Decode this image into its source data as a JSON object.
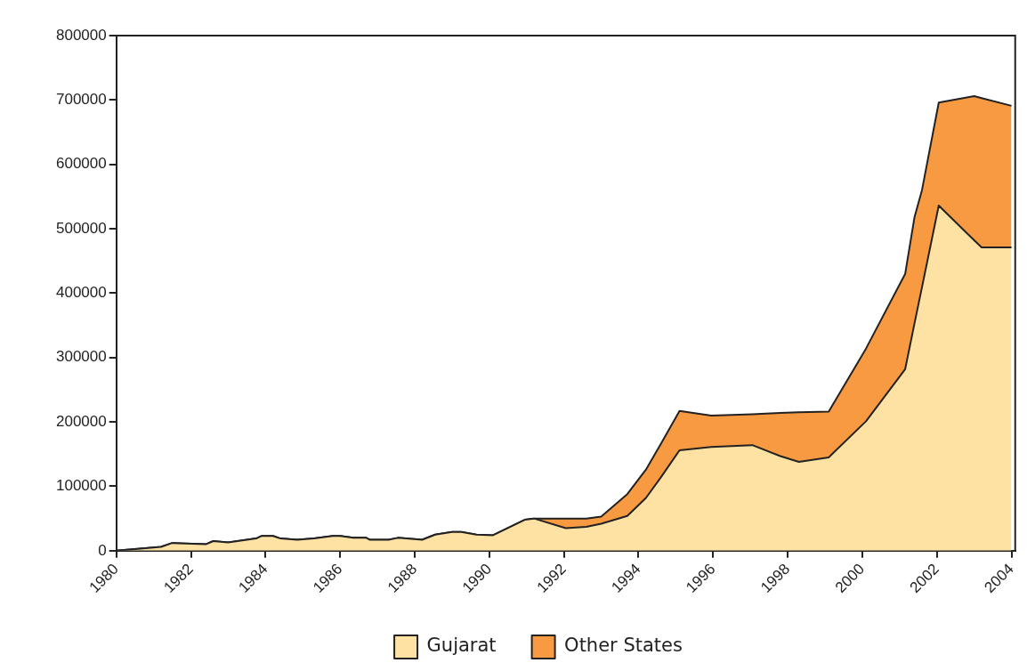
{
  "chart_data": {
    "type": "area",
    "stacked": true,
    "legend": "bottom",
    "grid": false,
    "x": [
      1980,
      1981.2,
      1981.5,
      1982.4,
      1982.6,
      1983.0,
      1983.75,
      1983.9,
      1984.2,
      1984.4,
      1984.85,
      1985.3,
      1985.8,
      1986.0,
      1986.35,
      1986.7,
      1986.8,
      1987.3,
      1987.55,
      1988.2,
      1988.55,
      1989.0,
      1989.25,
      1989.65,
      1990.1,
      1990.95,
      1991.2,
      1992.05,
      1992.6,
      1993.0,
      1993.7,
      1994.2,
      1994.6,
      1995.1,
      1995.95,
      1997.05,
      1997.8,
      1998.3,
      1999.1,
      2000.1,
      2001.15,
      2001.4,
      2001.6,
      2002.05,
      2003.0,
      2003.2,
      2004.0
    ],
    "series": [
      {
        "name": "Gujarat",
        "color": "#fde2a4",
        "values": [
          0,
          6000,
          12000,
          10000,
          15000,
          13000,
          19000,
          23000,
          23000,
          19000,
          17000,
          19000,
          23000,
          23000,
          20000,
          20000,
          17000,
          17000,
          20000,
          17000,
          25000,
          29000,
          29000,
          25000,
          24000,
          48000,
          50000,
          35000,
          37000,
          42000,
          54000,
          82000,
          114000,
          156000,
          161000,
          164000,
          147000,
          138000,
          145000,
          201000,
          282000,
          353000,
          409000,
          536000,
          482000,
          471000,
          471000
        ]
      },
      {
        "name": "Other States",
        "color": "#f79a42",
        "values": [
          0,
          0,
          0,
          0,
          0,
          0,
          0,
          0,
          0,
          0,
          0,
          0,
          0,
          0,
          0,
          0,
          0,
          0,
          0,
          0,
          0,
          0,
          0,
          0,
          0,
          0,
          0,
          15000,
          13000,
          11000,
          34000,
          44000,
          52000,
          61000,
          49000,
          48000,
          67000,
          77000,
          71000,
          113000,
          148000,
          165000,
          151000,
          160000,
          224000,
          232000,
          220000
        ]
      }
    ],
    "xlim": [
      1980,
      2004.1
    ],
    "xticks": [
      1980,
      1982,
      1984,
      1986,
      1988,
      1990,
      1992,
      1994,
      1996,
      1998,
      2000,
      2002,
      2004
    ],
    "ylim": [
      0,
      800000
    ],
    "yticks": [
      0,
      100000,
      200000,
      300000,
      400000,
      500000,
      600000,
      700000,
      800000
    ]
  }
}
